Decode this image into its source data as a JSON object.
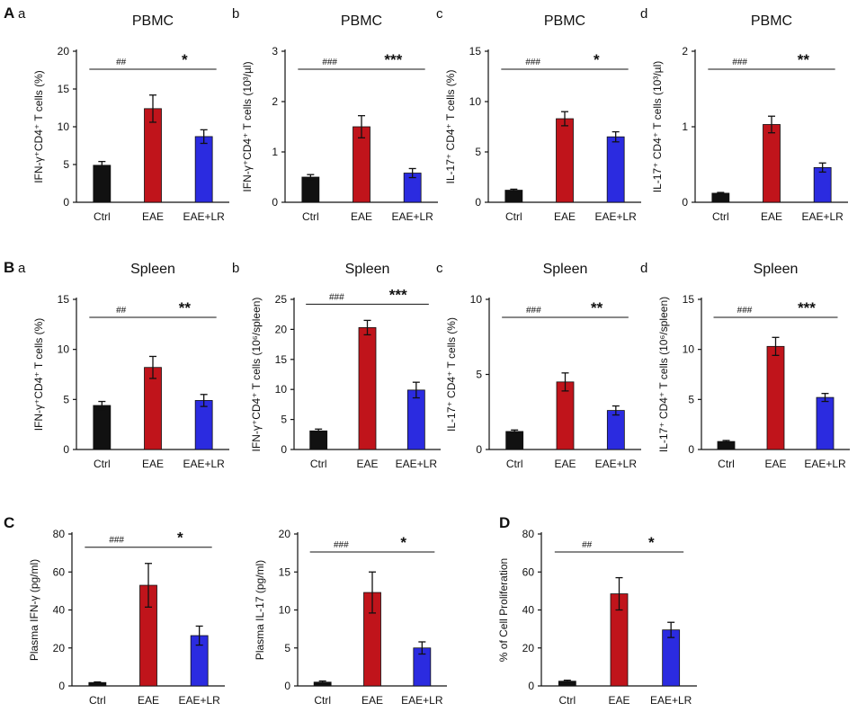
{
  "figure": {
    "sections": [
      {
        "id": "A",
        "label": "A"
      },
      {
        "id": "B",
        "label": "B"
      },
      {
        "id": "C",
        "label": "C"
      },
      {
        "id": "D",
        "label": "D"
      }
    ]
  },
  "colors": {
    "Ctrl": "#111111",
    "EAE": "#c0141b",
    "EAE+LR": "#2b2be0"
  },
  "chart_data": [
    {
      "id": "A-a",
      "section": "A",
      "panel_label": "a",
      "type": "bar",
      "title": "PBMC",
      "ylabel": "IFN-γ⁺CD4⁺ T cells (%)",
      "ylim": [
        0,
        20
      ],
      "yticks": [
        0,
        5,
        10,
        15,
        20
      ],
      "categories": [
        "Ctrl",
        "EAE",
        "EAE+LR"
      ],
      "values": [
        4.9,
        12.4,
        8.7
      ],
      "errors": [
        0.5,
        1.8,
        0.9
      ],
      "significance": [
        {
          "from": 0,
          "to": 1,
          "label": "##"
        },
        {
          "from": 1,
          "to": 2,
          "label": "*"
        }
      ]
    },
    {
      "id": "A-b",
      "section": "A",
      "panel_label": "b",
      "type": "bar",
      "title": "PBMC",
      "ylabel": "IFN-γ⁺CD4⁺ T cells (10³/µl)",
      "ylim": [
        0,
        3
      ],
      "yticks": [
        0,
        1,
        2,
        3
      ],
      "categories": [
        "Ctrl",
        "EAE",
        "EAE+LR"
      ],
      "values": [
        0.5,
        1.5,
        0.58
      ],
      "errors": [
        0.05,
        0.22,
        0.09
      ],
      "significance": [
        {
          "from": 0,
          "to": 1,
          "label": "###"
        },
        {
          "from": 1,
          "to": 2,
          "label": "***"
        }
      ]
    },
    {
      "id": "A-c",
      "section": "A",
      "panel_label": "c",
      "type": "bar",
      "title": "PBMC",
      "ylabel": "IL-17⁺ CD4⁺ T cells (%)",
      "ylim": [
        0,
        15
      ],
      "yticks": [
        0,
        5,
        10,
        15
      ],
      "categories": [
        "Ctrl",
        "EAE",
        "EAE+LR"
      ],
      "values": [
        1.2,
        8.3,
        6.5
      ],
      "errors": [
        0.1,
        0.7,
        0.5
      ],
      "significance": [
        {
          "from": 0,
          "to": 1,
          "label": "###"
        },
        {
          "from": 1,
          "to": 2,
          "label": "*"
        }
      ]
    },
    {
      "id": "A-d",
      "section": "A",
      "panel_label": "d",
      "type": "bar",
      "title": "PBMC",
      "ylabel": "IL-17⁺ CD4⁺ T cells (10³/µl)",
      "ylim": [
        0,
        2
      ],
      "yticks": [
        0,
        1,
        2
      ],
      "categories": [
        "Ctrl",
        "EAE",
        "EAE+LR"
      ],
      "values": [
        0.12,
        1.03,
        0.46
      ],
      "errors": [
        0.01,
        0.11,
        0.06
      ],
      "significance": [
        {
          "from": 0,
          "to": 1,
          "label": "###"
        },
        {
          "from": 1,
          "to": 2,
          "label": "**"
        }
      ]
    },
    {
      "id": "B-a",
      "section": "B",
      "panel_label": "a",
      "type": "bar",
      "title": "Spleen",
      "ylabel": "IFN-γ⁺CD4⁺ T cells (%)",
      "ylim": [
        0,
        15
      ],
      "yticks": [
        0,
        5,
        10,
        15
      ],
      "categories": [
        "Ctrl",
        "EAE",
        "EAE+LR"
      ],
      "values": [
        4.4,
        8.2,
        4.9
      ],
      "errors": [
        0.4,
        1.1,
        0.6
      ],
      "significance": [
        {
          "from": 0,
          "to": 1,
          "label": "##"
        },
        {
          "from": 1,
          "to": 2,
          "label": "**"
        }
      ]
    },
    {
      "id": "B-b",
      "section": "B",
      "panel_label": "b",
      "type": "bar",
      "title": "Spleen",
      "ylabel": "IFN-γ⁺CD4⁺ T cells (10⁶/spleen)",
      "ylim": [
        0,
        25
      ],
      "yticks": [
        0,
        5,
        10,
        15,
        20,
        25
      ],
      "categories": [
        "Ctrl",
        "EAE",
        "EAE+LR"
      ],
      "values": [
        3.1,
        20.3,
        9.9
      ],
      "errors": [
        0.3,
        1.2,
        1.3
      ],
      "significance": [
        {
          "from": 0,
          "to": 1,
          "label": "###"
        },
        {
          "from": 1,
          "to": 2,
          "label": "***"
        }
      ]
    },
    {
      "id": "B-c",
      "section": "B",
      "panel_label": "c",
      "type": "bar",
      "title": "Spleen",
      "ylabel": "IL-17⁺ CD4⁺ T cells (%)",
      "ylim": [
        0,
        10
      ],
      "yticks": [
        0,
        5,
        10
      ],
      "categories": [
        "Ctrl",
        "EAE",
        "EAE+LR"
      ],
      "values": [
        1.2,
        4.5,
        2.6
      ],
      "errors": [
        0.1,
        0.6,
        0.3
      ],
      "significance": [
        {
          "from": 0,
          "to": 1,
          "label": "###"
        },
        {
          "from": 1,
          "to": 2,
          "label": "**"
        }
      ]
    },
    {
      "id": "B-d",
      "section": "B",
      "panel_label": "d",
      "type": "bar",
      "title": "Spleen",
      "ylabel": "IL-17⁺ CD4⁺ T cells (10⁶/spleen)",
      "ylim": [
        0,
        15
      ],
      "yticks": [
        0,
        5,
        10,
        15
      ],
      "categories": [
        "Ctrl",
        "EAE",
        "EAE+LR"
      ],
      "values": [
        0.8,
        10.3,
        5.2
      ],
      "errors": [
        0.1,
        0.9,
        0.4
      ],
      "significance": [
        {
          "from": 0,
          "to": 1,
          "label": "###"
        },
        {
          "from": 1,
          "to": 2,
          "label": "***"
        }
      ]
    },
    {
      "id": "C-1",
      "section": "C",
      "panel_label": "",
      "type": "bar",
      "title": "",
      "ylabel": "Plasma IFN-γ (pg/ml)",
      "ylim": [
        0,
        80
      ],
      "yticks": [
        0,
        20,
        40,
        60,
        80
      ],
      "categories": [
        "Ctrl",
        "EAE",
        "EAE+LR"
      ],
      "values": [
        1.8,
        53,
        26.5
      ],
      "errors": [
        0.3,
        11.5,
        5
      ],
      "significance": [
        {
          "from": 0,
          "to": 1,
          "label": "###"
        },
        {
          "from": 1,
          "to": 2,
          "label": "*"
        }
      ]
    },
    {
      "id": "C-2",
      "section": "C",
      "panel_label": "",
      "type": "bar",
      "title": "",
      "ylabel": "Plasma IL-17 (pg/ml)",
      "ylim": [
        0,
        20
      ],
      "yticks": [
        0,
        5,
        10,
        15,
        20
      ],
      "categories": [
        "Ctrl",
        "EAE",
        "EAE+LR"
      ],
      "values": [
        0.5,
        12.3,
        5
      ],
      "errors": [
        0.15,
        2.7,
        0.8
      ],
      "significance": [
        {
          "from": 0,
          "to": 1,
          "label": "###"
        },
        {
          "from": 1,
          "to": 2,
          "label": "*"
        }
      ]
    },
    {
      "id": "D-1",
      "section": "D",
      "panel_label": "",
      "type": "bar",
      "title": "",
      "ylabel": "% of Cell Proliferation",
      "ylim": [
        0,
        80
      ],
      "yticks": [
        0,
        20,
        40,
        60,
        80
      ],
      "categories": [
        "Ctrl",
        "EAE",
        "EAE+LR"
      ],
      "values": [
        2.5,
        48.5,
        29.5
      ],
      "errors": [
        0.5,
        8.5,
        4
      ],
      "significance": [
        {
          "from": 0,
          "to": 1,
          "label": "##"
        },
        {
          "from": 1,
          "to": 2,
          "label": "*"
        }
      ]
    }
  ]
}
